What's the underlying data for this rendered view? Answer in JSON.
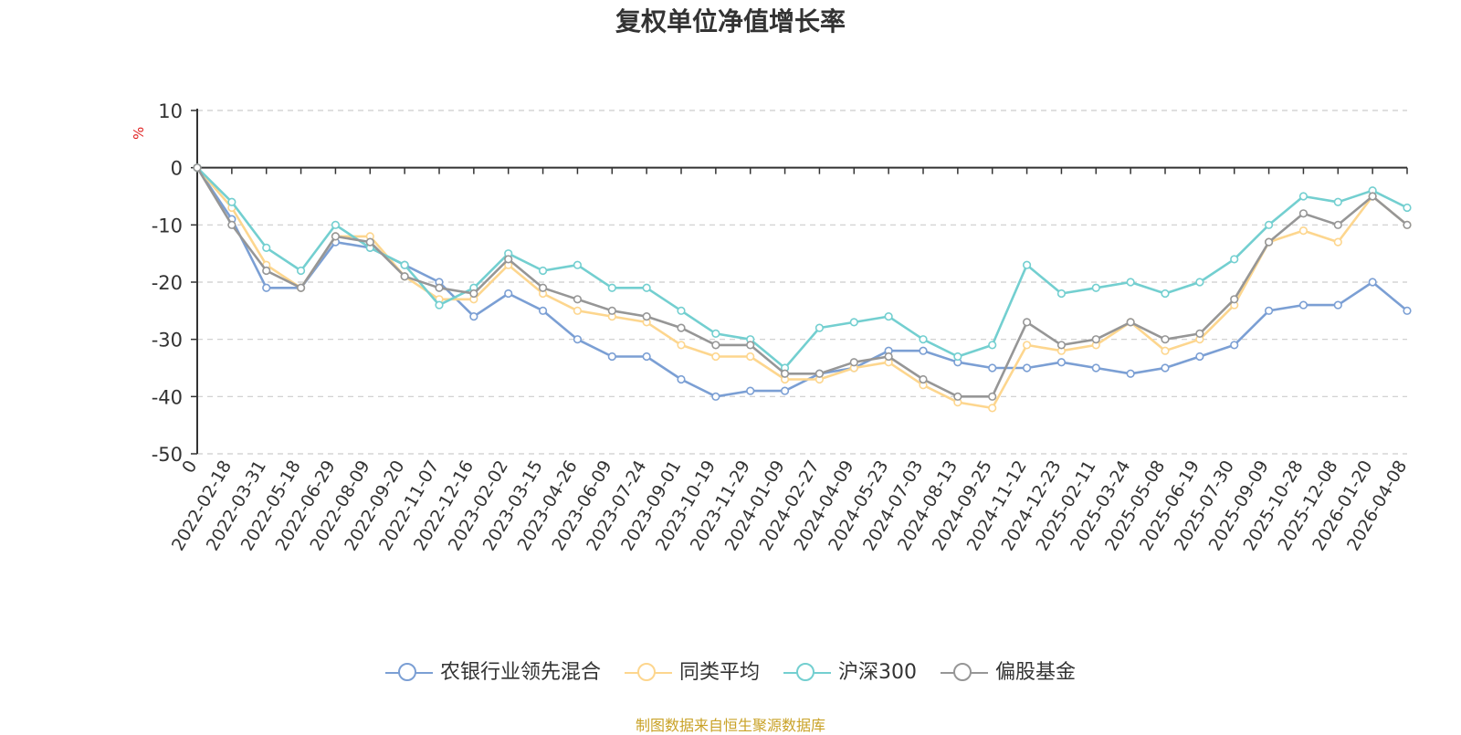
{
  "chart_data": {
    "type": "line",
    "title": "复权单位净值增长率",
    "ylabel": "%",
    "xlabel": "",
    "ylim": [
      -50,
      10
    ],
    "yticks": [
      10,
      0,
      -10,
      -20,
      -30,
      -40,
      -50
    ],
    "categories": [
      "0",
      "2022-02-18",
      "2022-03-31",
      "2022-05-18",
      "2022-06-29",
      "2022-08-09",
      "2022-09-20",
      "2022-11-07",
      "2022-12-16",
      "2023-02-02",
      "2023-03-15",
      "2023-04-26",
      "2023-06-09",
      "2023-07-24",
      "2023-09-01",
      "2023-10-19",
      "2023-11-29",
      "2024-01-09",
      "2024-02-27",
      "2024-04-09",
      "2024-05-23",
      "2024-07-03",
      "2024-08-13",
      "2024-09-25",
      "2024-11-12",
      "2024-12-23",
      "2025-02-11",
      "2025-03-24",
      "2025-05-08",
      "2025-06-19",
      "2025-07-30",
      "2025-09-09",
      "2025-10-28",
      "2025-12-08",
      "2026-01-20",
      "2026-04-08"
    ],
    "series": [
      {
        "name": "农银行业领先混合",
        "color": "#7b9fd4",
        "values": [
          0,
          -9,
          -21,
          -21,
          -13,
          -14,
          -17,
          -20,
          -26,
          -22,
          -25,
          -30,
          -33,
          -33,
          -37,
          -40,
          -39,
          -39,
          -36,
          -35,
          -32,
          -32,
          -34,
          -35,
          -35,
          -34,
          -35,
          -36,
          -35,
          -33,
          -31,
          -25,
          -24,
          -24,
          -20,
          -25
        ]
      },
      {
        "name": "同类平均",
        "color": "#fdd68e",
        "values": [
          0,
          -7,
          -17,
          -21,
          -12,
          -12,
          -19,
          -23,
          -23,
          -17,
          -22,
          -25,
          -26,
          -27,
          -31,
          -33,
          -33,
          -37,
          -37,
          -35,
          -34,
          -38,
          -41,
          -42,
          -31,
          -32,
          -31,
          -27,
          -32,
          -30,
          -24,
          -13,
          -11,
          -13,
          -5,
          -10
        ]
      },
      {
        "name": "沪深300",
        "color": "#73cfd0",
        "values": [
          0,
          -6,
          -14,
          -18,
          -10,
          -14,
          -17,
          -24,
          -21,
          -15,
          -18,
          -17,
          -21,
          -21,
          -25,
          -29,
          -30,
          -35,
          -28,
          -27,
          -26,
          -30,
          -33,
          -31,
          -17,
          -22,
          -21,
          -20,
          -22,
          -20,
          -16,
          -10,
          -5,
          -6,
          -4,
          -7
        ]
      },
      {
        "name": "偏股基金",
        "color": "#969696",
        "values": [
          0,
          -10,
          -18,
          -21,
          -12,
          -13,
          -19,
          -21,
          -22,
          -16,
          -21,
          -23,
          -25,
          -26,
          -28,
          -31,
          -31,
          -36,
          -36,
          -34,
          -33,
          -37,
          -40,
          -40,
          -27,
          -31,
          -30,
          -27,
          -30,
          -29,
          -23,
          -13,
          -8,
          -10,
          -5,
          -10
        ]
      }
    ]
  },
  "legend": {
    "items": [
      {
        "label": "农银行业领先混合",
        "color": "#7b9fd4"
      },
      {
        "label": "同类平均",
        "color": "#fdd68e"
      },
      {
        "label": "沪深300",
        "color": "#73cfd0"
      },
      {
        "label": "偏股基金",
        "color": "#969696"
      }
    ]
  },
  "source": "制图数据来自恒生聚源数据库"
}
